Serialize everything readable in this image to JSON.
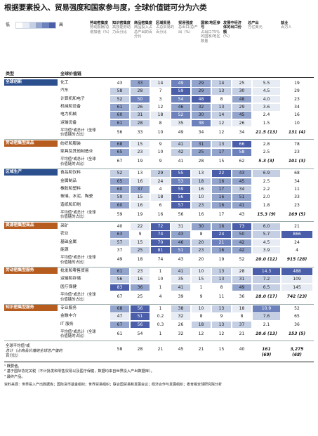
{
  "title": "根据要素投入、贸易强度和国家参与度，全球价值链可分为六类",
  "legend": {
    "low": "低",
    "high": "高",
    "scale": [
      "#ffffff",
      "#e7ebf3",
      "#c5cfe3",
      "#93a4cc",
      "#6d82bd",
      "#4a5ea9"
    ]
  },
  "headers": [
    {
      "bold": "劳动密集度",
      "sub": "劳动报酬/总增加值（%）"
    },
    {
      "bold": "知识密集度",
      "sub": "高技能劳动力百分比"
    },
    {
      "bold": "商品密集度",
      "sub": "商品投入占总产出的百分比"
    },
    {
      "bold": "区域贸易",
      "sub": "占总贸易的百分比"
    },
    {
      "bold": "贸易强度",
      "sub": "总出口/总产出（%）"
    },
    {
      "bold": "国家/地区参与",
      "sub": "占出口75%的国家/地区数量"
    },
    {
      "bold": "发展中经济体的出口份额",
      "sub": "(%)"
    },
    {
      "bold": "总产出",
      "sub": "万亿美元"
    },
    {
      "bold": "就业",
      "sub": "百万人"
    }
  ],
  "col_type_label": "类型",
  "col_chain_label": "全球价值链",
  "groups": [
    {
      "name": "全球创新",
      "color": "#2c4f8e",
      "rows": [
        {
          "label": "化工",
          "v": [
            "43",
            "33",
            "14",
            "49",
            "29",
            "14",
            "25",
            "5.5",
            "19"
          ]
        },
        {
          "label": "汽车",
          "v": [
            "58",
            "28",
            "7",
            "59",
            "29",
            "13",
            "30",
            "4.5",
            "29"
          ]
        },
        {
          "label": "计算机和电子",
          "v": [
            "52",
            "50",
            "3",
            "54",
            "48",
            "8",
            "48",
            "4.0",
            "23"
          ]
        },
        {
          "label": "机械和设备",
          "v": [
            "61",
            "26",
            "12",
            "46",
            "32",
            "13",
            "29",
            "3.6",
            "34"
          ]
        },
        {
          "label": "电力机械",
          "v": [
            "60",
            "31",
            "18",
            "52",
            "30",
            "14",
            "45",
            "2.4",
            "16"
          ]
        },
        {
          "label": "运输设备",
          "v": [
            "61",
            "28",
            "8",
            "35",
            "38",
            "12",
            "26",
            "1.5",
            "10"
          ]
        }
      ],
      "avg": {
        "label1": "平均值¹或总计（全球",
        "label2": "价值链的占比）",
        "v": [
          "56",
          "33",
          "10",
          "49",
          "34",
          "12",
          "34",
          "21.5",
          "131"
        ],
        "pct": [
          "",
          "",
          "",
          "",
          "",
          "",
          "",
          "(13)",
          "(4)"
        ]
      }
    },
    {
      "name": "劳动密集型商品",
      "color": "#b65c1f",
      "rows": [
        {
          "label": "纺织和服装",
          "v": [
            "68",
            "15",
            "9",
            "41",
            "31",
            "13",
            "66",
            "2.8",
            "78"
          ]
        },
        {
          "label": "家具及其他制造业",
          "v": [
            "65",
            "23",
            "10",
            "42",
            "25",
            "17",
            "58",
            "2.5",
            "23"
          ]
        }
      ],
      "avg": {
        "label1": "平均值¹或总计（全球",
        "label2": "价值链的占比）",
        "v": [
          "67",
          "19",
          "9",
          "41",
          "28",
          "15",
          "62",
          "5.3",
          "101"
        ],
        "pct": [
          "",
          "",
          "",
          "",
          "",
          "",
          "",
          "(3)",
          "(3)"
        ]
      }
    },
    {
      "name": "区域生产",
      "color": "#2c4f8e",
      "rows": [
        {
          "label": "食品和饮料",
          "v": [
            "52",
            "13",
            "29",
            "55",
            "13",
            "22",
            "43",
            "6.9",
            "68"
          ]
        },
        {
          "label": "金属制品",
          "v": [
            "65",
            "16",
            "24",
            "53",
            "18",
            "16",
            "45",
            "2.5",
            "34"
          ]
        },
        {
          "label": "橡胶和塑料",
          "v": [
            "60",
            "37",
            "4",
            "59",
            "16",
            "17",
            "34",
            "2.2",
            "11"
          ]
        },
        {
          "label": "玻璃、水泥、陶瓷",
          "v": [
            "59",
            "15",
            "18",
            "56",
            "10",
            "16",
            "51",
            "2.0",
            "33"
          ]
        },
        {
          "label": "造纸和印刷",
          "v": [
            "60",
            "16",
            "6",
            "57",
            "23",
            "16",
            "41",
            "1.8",
            "23"
          ]
        }
      ],
      "avg": {
        "label1": "平均值¹或总计（全球",
        "label2": "价值链的占比）",
        "v": [
          "59",
          "19",
          "16",
          "56",
          "16",
          "17",
          "43",
          "15.3",
          "169"
        ],
        "pct": [
          "",
          "",
          "",
          "",
          "",
          "",
          "",
          "(9)",
          "(5)"
        ]
      }
    },
    {
      "name": "资源密集型商品",
      "color": "#b65c1f",
      "rows": [
        {
          "label": "采矿",
          "v": [
            "40",
            "22",
            "72",
            "31",
            "30",
            "16",
            "73",
            "6.0",
            "21"
          ]
        },
        {
          "label": "农业",
          "v": [
            "63",
            "9",
            "74",
            "43",
            "8",
            "24",
            "50",
            "5.7",
            "866"
          ]
        },
        {
          "label": "基础金属",
          "v": [
            "57",
            "15",
            "70",
            "46",
            "20",
            "21",
            "42",
            "4.5",
            "24"
          ]
        },
        {
          "label": "能源",
          "v": [
            "37",
            "25",
            "81",
            "51",
            "23",
            "16",
            "42",
            "3.9",
            "4"
          ]
        }
      ],
      "avg": {
        "label1": "平均值¹或总计（全球",
        "label2": "价值链的占比）",
        "v": [
          "49",
          "18",
          "74",
          "43",
          "20",
          "19",
          "52",
          "20.0",
          "915"
        ],
        "pct": [
          "",
          "",
          "",
          "",
          "",
          "",
          "",
          "(12)",
          "(28)"
        ]
      }
    },
    {
      "name": "劳动密集型服务",
      "color": "#b65c1f",
      "rows": [
        {
          "label": "批发和零售贸易",
          "v": [
            "61",
            "23",
            "1",
            "41",
            "10",
            "13",
            "28",
            "14.3",
            "488"
          ]
        },
        {
          "label": "运输和存储",
          "v": [
            "56",
            "16",
            "10",
            "35",
            "15",
            "13",
            "31",
            "7.2",
            "109"
          ]
        },
        {
          "label": "医疗保健",
          "v": [
            "83",
            "36",
            "1",
            "41",
            "1",
            "8",
            "49",
            "6.5",
            "145"
          ]
        }
      ],
      "avg": {
        "label1": "平均值¹或总计（全球",
        "label2": "价值链的占比）",
        "v": [
          "67",
          "25",
          "4",
          "39",
          "9",
          "11",
          "36",
          "28.0",
          "742"
        ],
        "pct": [
          "",
          "",
          "",
          "",
          "",
          "",
          "",
          "(17)",
          "(23)"
        ]
      }
    },
    {
      "name": "知识密集型服务",
      "color": "#b65c1f",
      "rows": [
        {
          "label": "专业服务",
          "v": [
            "68",
            "56",
            "1",
            "38",
            "10",
            "13",
            "18",
            "10.9",
            "52"
          ]
        },
        {
          "label": "金融中介",
          "v": [
            "47",
            "51",
            "0.2",
            "32",
            "8",
            "9",
            "8",
            "7.6",
            "65"
          ]
        },
        {
          "label": "IT 服务",
          "v": [
            "67",
            "56",
            "0.3",
            "26",
            "18",
            "13",
            "37",
            "2.1",
            "36"
          ]
        }
      ],
      "avg": {
        "label1": "平均值¹或总计（全球",
        "label2": "价值链的占比）",
        "v": [
          "61",
          "54",
          "1",
          "32",
          "12",
          "12",
          "21",
          "20.6",
          "153"
        ],
        "pct": [
          "",
          "",
          "",
          "",
          "",
          "",
          "",
          "(13)",
          "(5)"
        ]
      }
    }
  ],
  "total": {
    "label1": "全球平均值¹或",
    "label2": "总计（占商品价值链全球总产值的",
    "label3": "百分比）",
    "v": [
      "58",
      "28",
      "21",
      "45",
      "21",
      "15",
      "40",
      "161",
      "3,275"
    ],
    "pct": [
      "",
      "",
      "",
      "",
      "",
      "",
      "",
      "(69)",
      "(68)"
    ]
  },
  "footnotes": [
    "¹ 概要值。",
    "² 基于国际协定关税（不计批发和零售贸易以及医疗保健，数据均来自世界投入产出数据库）。",
    "³ 最终产品。"
  ],
  "source": "资料来源：世界投入产出数据库；国际货币基金组织；世界贸易组织；联合国贸易和发展会议；经济合作与发展组织；麦肯锡全球研究院分析"
}
